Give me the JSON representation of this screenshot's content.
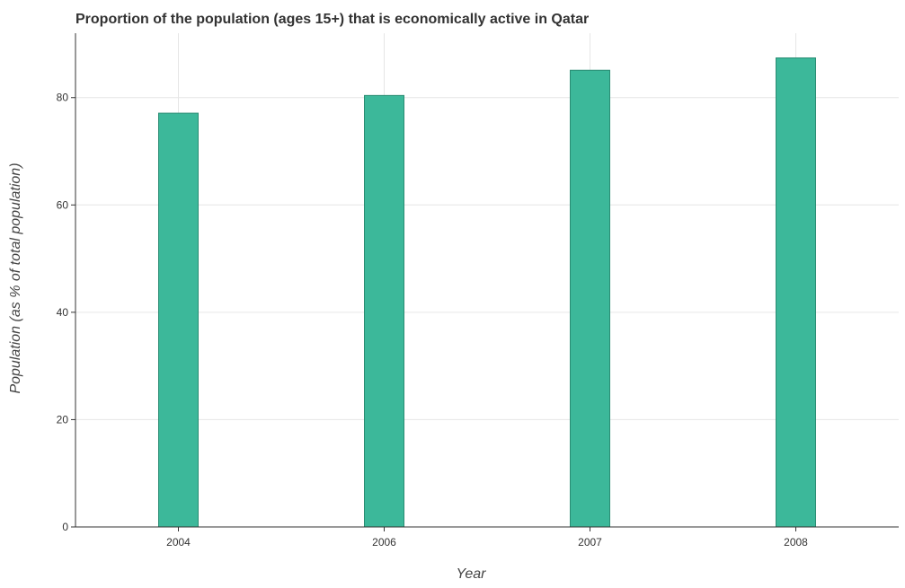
{
  "chart_data": {
    "type": "bar",
    "title": "Proportion of the population (ages 15+) that is economically active in Qatar",
    "xlabel": "Year",
    "ylabel": "Population (as % of total population)",
    "categories": [
      "2004",
      "2006",
      "2007",
      "2008"
    ],
    "values": [
      77.1,
      80.4,
      85.1,
      87.4
    ],
    "ylim": [
      0,
      92
    ],
    "yticks": [
      0,
      20,
      40,
      60,
      80
    ],
    "grid": true,
    "colors": {
      "bar": "#3cb89a",
      "bar_edge": "#2a8c73"
    }
  }
}
